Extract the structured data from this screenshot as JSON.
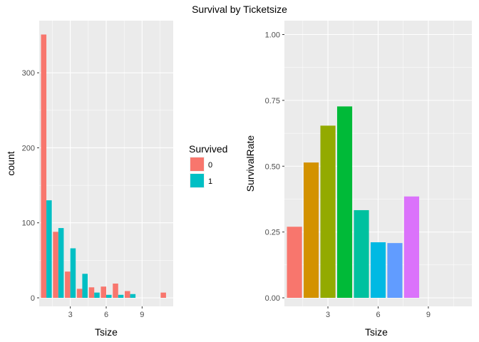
{
  "title": "Survival by Ticketsize",
  "chart_data": [
    {
      "type": "bar",
      "variant": "dodged",
      "xlabel": "Tsize",
      "ylabel": "count",
      "xlim": [
        0.4,
        11.6
      ],
      "ylim": [
        0,
        352
      ],
      "x_ticks": [
        3,
        6,
        9
      ],
      "y_ticks": [
        0,
        100,
        200,
        300
      ],
      "grid": true,
      "legend": {
        "title": "Survived",
        "position": "right",
        "entries": [
          {
            "label": "0",
            "color": "#F8766D"
          },
          {
            "label": "1",
            "color": "#00BFC4"
          }
        ]
      },
      "series": [
        {
          "name": "0",
          "color": "#F8766D",
          "x": [
            1,
            2,
            3,
            4,
            5,
            6,
            7,
            8,
            11
          ],
          "values": [
            351,
            88,
            35,
            12,
            14,
            15,
            19,
            9,
            7
          ]
        },
        {
          "name": "1",
          "color": "#00BFC4",
          "x": [
            1,
            2,
            3,
            4,
            5,
            6,
            7,
            8
          ],
          "values": [
            130,
            93,
            66,
            32,
            7,
            4,
            4,
            5
          ]
        }
      ]
    },
    {
      "type": "bar",
      "xlabel": "Tsize",
      "ylabel": "SurvivalRate",
      "xlim": [
        0.4,
        11.6
      ],
      "ylim": [
        0,
        1
      ],
      "x_ticks": [
        3,
        6,
        9
      ],
      "y_ticks": [
        0,
        0.25,
        0.5,
        0.75,
        1
      ],
      "y_tick_labels": [
        "0.00",
        "0.25",
        "0.50",
        "0.75",
        "1.00"
      ],
      "grid": true,
      "x": [
        1,
        2,
        3,
        4,
        5,
        6,
        7,
        8,
        11
      ],
      "values": [
        0.27,
        0.514,
        0.654,
        0.727,
        0.333,
        0.211,
        0.208,
        0.385,
        0
      ],
      "colors": [
        "#F8766D",
        "#D39200",
        "#93AA00",
        "#00BA38",
        "#00C19F",
        "#00B9E3",
        "#619CFF",
        "#DB72FB",
        "#FF61C3"
      ]
    }
  ]
}
